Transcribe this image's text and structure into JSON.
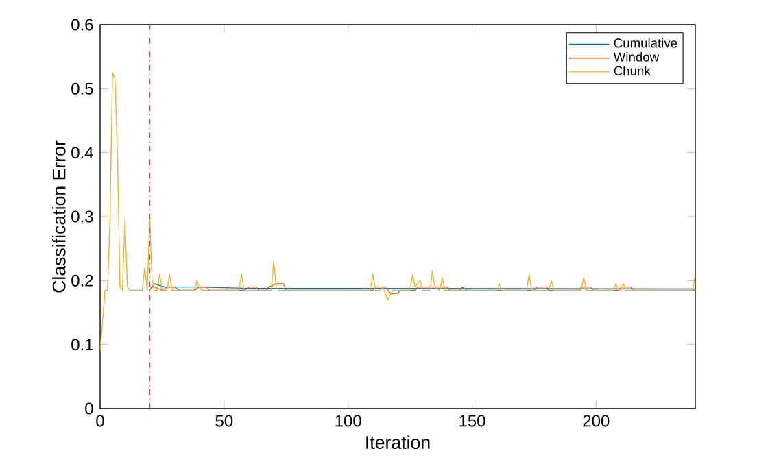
{
  "chart_data": {
    "type": "line",
    "xlabel": "Iteration",
    "ylabel": "Classification Error",
    "xlim": [
      0,
      240
    ],
    "ylim": [
      0,
      0.6
    ],
    "xticks": [
      0,
      50,
      100,
      150,
      200
    ],
    "yticks": [
      0,
      0.1,
      0.2,
      0.3,
      0.4,
      0.5,
      0.6
    ],
    "legend": "top right",
    "grid": false,
    "marker": "none",
    "line_style": "solid",
    "ref_lines": [
      {
        "axis": "x",
        "value": 20,
        "color": "#e04040",
        "line_style": "dashdot"
      }
    ],
    "series": [
      {
        "name": "Cumulative",
        "color": "#0072bd",
        "x": [
          20,
          22,
          26,
          40,
          60,
          100,
          240
        ],
        "values": [
          0.185,
          0.195,
          0.19,
          0.19,
          0.188,
          0.188,
          0.187
        ]
      },
      {
        "name": "Window",
        "color": "#d95319",
        "x": [
          20,
          22,
          25,
          27,
          30,
          32,
          38,
          40,
          43,
          44,
          58,
          60,
          63,
          64,
          67,
          68,
          71,
          74,
          75,
          110,
          111,
          115,
          117,
          120,
          121,
          127,
          128,
          134,
          140,
          141,
          145,
          146,
          148,
          175,
          176,
          180,
          181,
          193,
          194,
          198,
          199,
          209,
          210,
          214,
          215,
          240
        ],
        "values": [
          0.19,
          0.19,
          0.185,
          0.19,
          0.19,
          0.185,
          0.185,
          0.19,
          0.19,
          0.185,
          0.185,
          0.19,
          0.19,
          0.185,
          0.185,
          0.19,
          0.195,
          0.195,
          0.185,
          0.185,
          0.19,
          0.19,
          0.18,
          0.18,
          0.185,
          0.185,
          0.19,
          0.19,
          0.19,
          0.185,
          0.185,
          0.19,
          0.185,
          0.185,
          0.19,
          0.19,
          0.185,
          0.185,
          0.19,
          0.19,
          0.185,
          0.185,
          0.19,
          0.19,
          0.185,
          0.185
        ]
      },
      {
        "name": "Chunk",
        "color": "#edb120",
        "x": [
          0,
          2,
          3,
          4,
          5,
          6,
          7,
          8,
          9,
          10,
          11,
          12,
          17,
          18,
          19,
          20,
          21,
          22,
          23,
          24,
          25,
          27,
          28,
          29,
          38,
          39,
          40,
          41,
          56,
          57,
          58,
          69,
          70,
          71,
          72,
          109,
          110,
          111,
          113,
          114,
          116,
          118,
          125,
          126,
          127,
          129,
          130,
          133,
          134,
          135,
          137,
          138,
          139,
          160,
          161,
          162,
          172,
          173,
          174,
          181,
          182,
          183,
          194,
          195,
          196,
          207,
          208,
          209,
          210,
          211,
          212,
          239,
          240
        ],
        "values": [
          0.09,
          0.185,
          0.185,
          0.3,
          0.525,
          0.515,
          0.4,
          0.19,
          0.185,
          0.295,
          0.19,
          0.185,
          0.185,
          0.22,
          0.185,
          0.295,
          0.2,
          0.185,
          0.185,
          0.21,
          0.185,
          0.185,
          0.21,
          0.185,
          0.185,
          0.2,
          0.19,
          0.185,
          0.185,
          0.21,
          0.185,
          0.185,
          0.23,
          0.19,
          0.185,
          0.185,
          0.21,
          0.185,
          0.185,
          0.19,
          0.17,
          0.185,
          0.185,
          0.21,
          0.19,
          0.2,
          0.185,
          0.185,
          0.215,
          0.19,
          0.185,
          0.205,
          0.185,
          0.185,
          0.195,
          0.185,
          0.185,
          0.21,
          0.185,
          0.185,
          0.2,
          0.185,
          0.185,
          0.205,
          0.185,
          0.185,
          0.195,
          0.185,
          0.185,
          0.195,
          0.185,
          0.185,
          0.21
        ]
      }
    ]
  }
}
